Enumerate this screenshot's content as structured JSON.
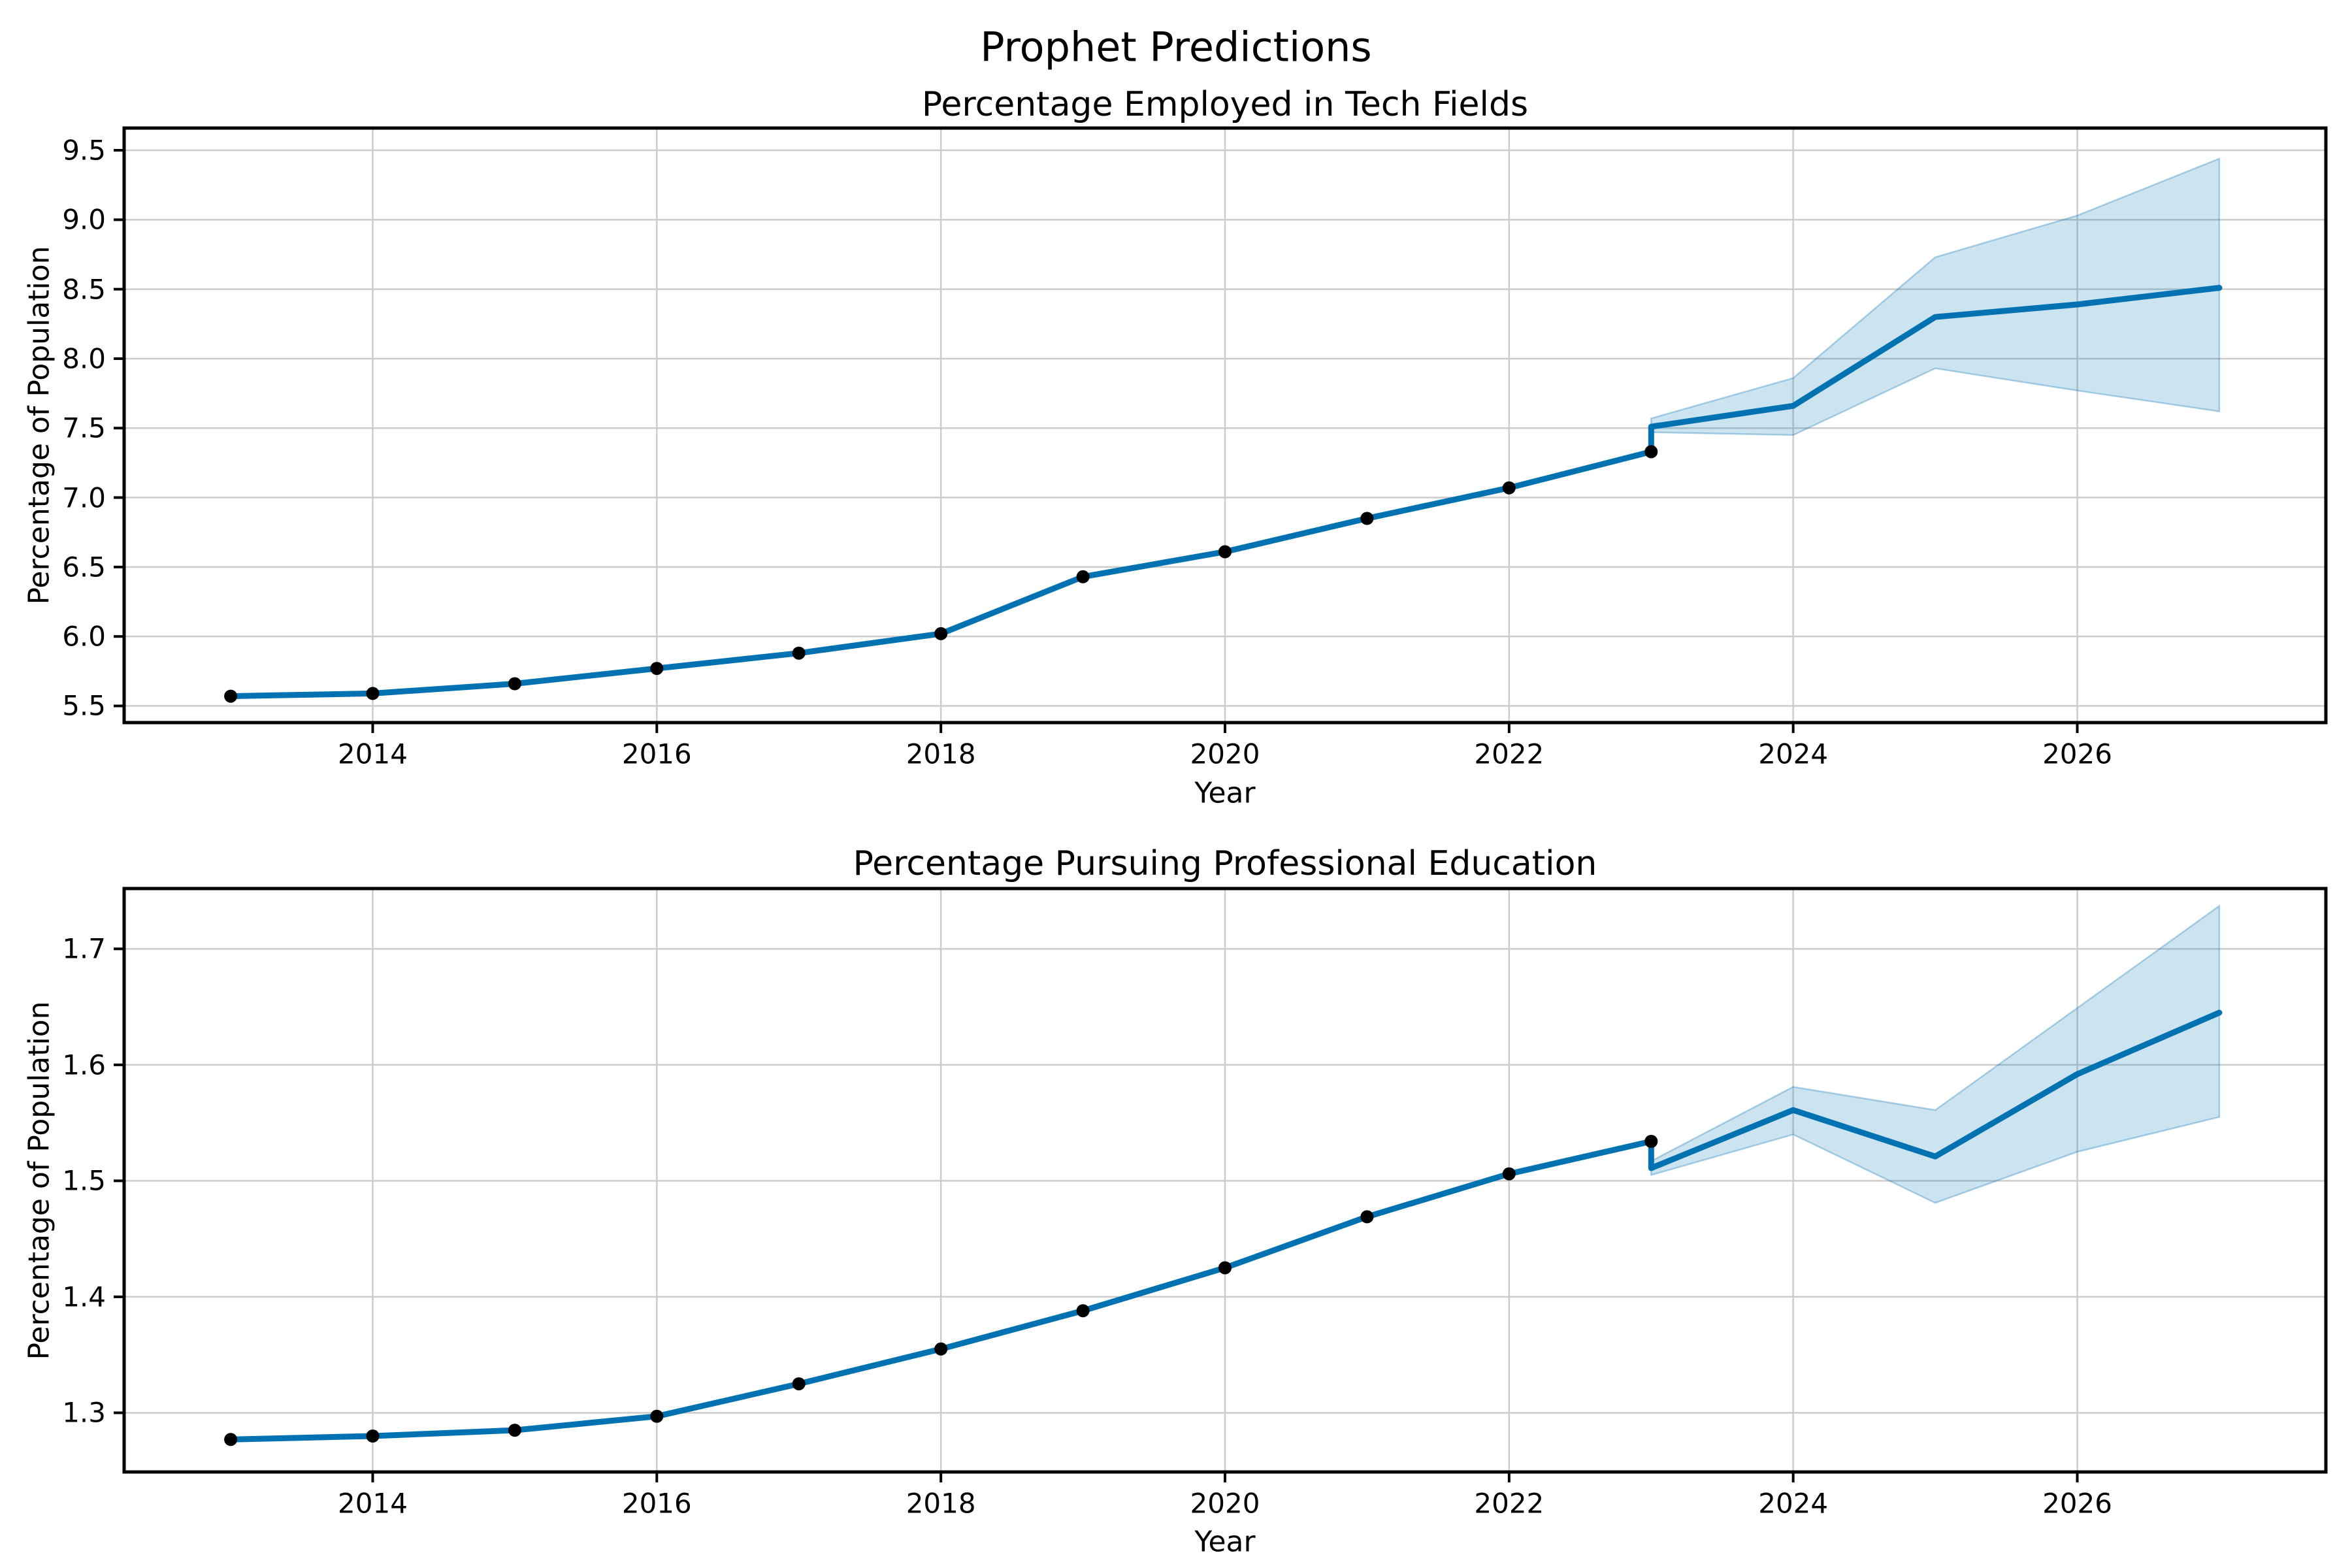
{
  "figure": {
    "suptitle": "Prophet Predictions",
    "background_color": "#ffffff",
    "line_color": "#0072B2",
    "band_fill_color": "rgba(0,114,178,0.2)",
    "band_edge_color": "rgba(0,114,178,0.3)",
    "observed_point_color": "#000000",
    "grid_color": "#cccccc",
    "spine_color": "#000000",
    "text_color": "#000000"
  },
  "chart_data": [
    {
      "type": "line",
      "title": "Percentage Employed in Tech Fields",
      "xlabel": "Year",
      "ylabel": "Percentage of Population",
      "xlim": [
        2012.25,
        2027.75
      ],
      "ylim": [
        5.38,
        9.66
      ],
      "xticks": [
        "2014",
        "2016",
        "2018",
        "2020",
        "2022",
        "2024",
        "2026"
      ],
      "yticks": [
        "5.5",
        "6.0",
        "6.5",
        "7.0",
        "7.5",
        "8.0",
        "8.5",
        "9.0",
        "9.5"
      ],
      "grid": true,
      "legend_position": "none",
      "observed": {
        "name": "observed",
        "x": [
          2013,
          2014,
          2015,
          2016,
          2017,
          2018,
          2019,
          2020,
          2021,
          2022,
          2023
        ],
        "y": [
          5.57,
          5.59,
          5.66,
          5.77,
          5.88,
          6.02,
          6.43,
          6.61,
          6.85,
          7.07,
          7.33
        ]
      },
      "forecast": {
        "name": "forecast",
        "x": [
          2023,
          2024,
          2025,
          2026,
          2027
        ],
        "yhat": [
          7.51,
          7.66,
          8.3,
          8.39,
          8.51
        ],
        "yhat_lower": [
          7.47,
          7.45,
          7.93,
          7.77,
          7.62
        ],
        "yhat_upper": [
          7.57,
          7.86,
          8.73,
          9.03,
          9.44
        ]
      }
    },
    {
      "type": "line",
      "title": "Percentage Pursuing Professional Education",
      "xlabel": "Year",
      "ylabel": "Percentage of Population",
      "xlim": [
        2012.25,
        2027.75
      ],
      "ylim": [
        1.249,
        1.752
      ],
      "xticks": [
        "2014",
        "2016",
        "2018",
        "2020",
        "2022",
        "2024",
        "2026"
      ],
      "yticks": [
        "1.3",
        "1.4",
        "1.5",
        "1.6",
        "1.7"
      ],
      "grid": true,
      "legend_position": "none",
      "observed": {
        "name": "observed",
        "x": [
          2013,
          2014,
          2015,
          2016,
          2017,
          2018,
          2019,
          2020,
          2021,
          2022,
          2023
        ],
        "y": [
          1.277,
          1.28,
          1.285,
          1.297,
          1.325,
          1.355,
          1.388,
          1.425,
          1.469,
          1.506,
          1.534
        ]
      },
      "forecast": {
        "name": "forecast",
        "x": [
          2023,
          2024,
          2025,
          2026,
          2027
        ],
        "yhat": [
          1.511,
          1.561,
          1.521,
          1.592,
          1.645
        ],
        "yhat_lower": [
          1.505,
          1.54,
          1.481,
          1.525,
          1.555
        ],
        "yhat_upper": [
          1.517,
          1.581,
          1.561,
          1.649,
          1.737
        ]
      }
    }
  ]
}
